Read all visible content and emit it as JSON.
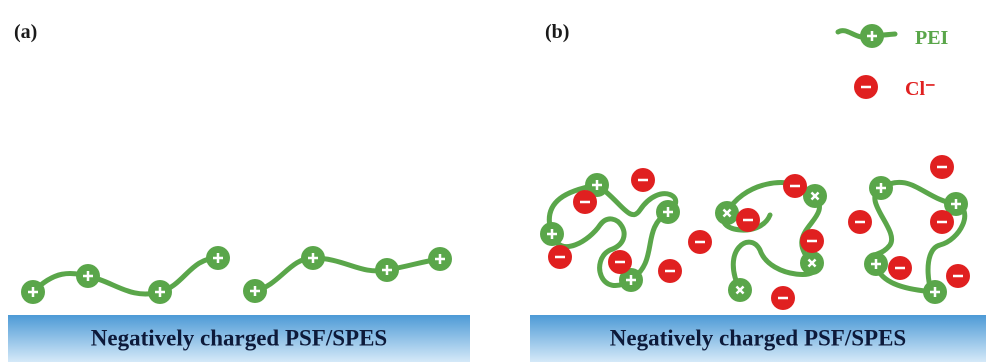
{
  "panel_a": {
    "label": "(a)",
    "substrate": "Negatively charged PSF/SPES"
  },
  "panel_b": {
    "label": "(b)",
    "substrate": "Negatively charged PSF/SPES"
  },
  "legend": {
    "pei": "PEI",
    "chloride": "Cl⁻"
  }
}
